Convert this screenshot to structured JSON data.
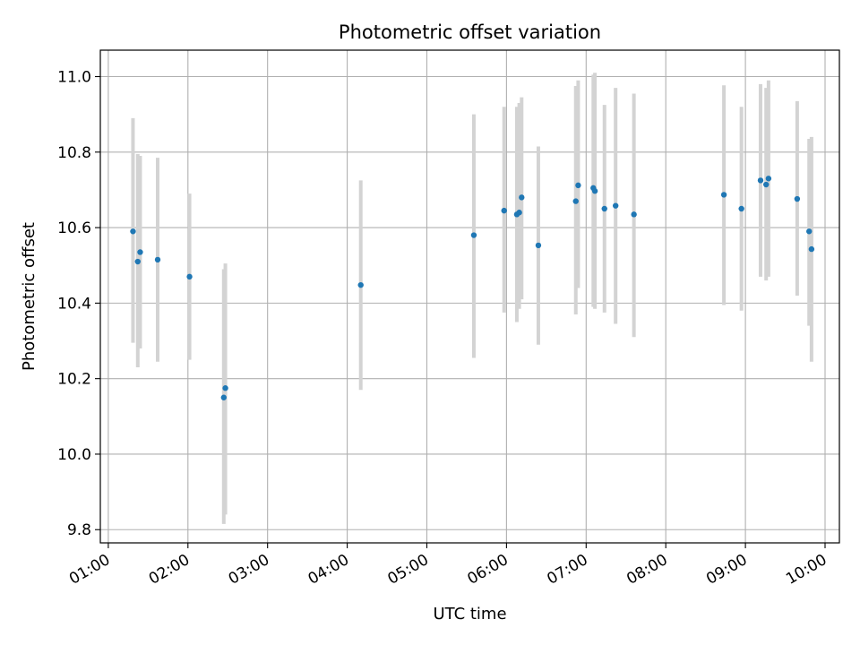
{
  "chart_data": {
    "type": "scatter",
    "title": "Photometric offset variation",
    "xlabel": "UTC time",
    "ylabel": "Photometric offset",
    "x_unit": "hours UTC",
    "xlim": [
      0.9,
      10.18
    ],
    "ylim": [
      9.765,
      11.07
    ],
    "x_ticks": [
      {
        "value": 1,
        "label": "01:00"
      },
      {
        "value": 2,
        "label": "02:00"
      },
      {
        "value": 3,
        "label": "03:00"
      },
      {
        "value": 4,
        "label": "04:00"
      },
      {
        "value": 5,
        "label": "05:00"
      },
      {
        "value": 6,
        "label": "06:00"
      },
      {
        "value": 7,
        "label": "07:00"
      },
      {
        "value": 8,
        "label": "08:00"
      },
      {
        "value": 9,
        "label": "09:00"
      },
      {
        "value": 10,
        "label": "10:00"
      }
    ],
    "y_ticks": [
      {
        "value": 9.8,
        "label": "9.8"
      },
      {
        "value": 10.0,
        "label": "10.0"
      },
      {
        "value": 10.2,
        "label": "10.2"
      },
      {
        "value": 10.4,
        "label": "10.4"
      },
      {
        "value": 10.6,
        "label": "10.6"
      },
      {
        "value": 10.8,
        "label": "10.8"
      },
      {
        "value": 11.0,
        "label": "11.0"
      }
    ],
    "grid": true,
    "marker_color": "#1f77b4",
    "errorbar_color": "#d3d3d3",
    "points": [
      {
        "x": 1.31,
        "y": 10.59,
        "ylo": 10.295,
        "yhi": 10.89
      },
      {
        "x": 1.37,
        "y": 10.51,
        "ylo": 10.23,
        "yhi": 10.795
      },
      {
        "x": 1.4,
        "y": 10.535,
        "ylo": 10.28,
        "yhi": 10.79
      },
      {
        "x": 1.62,
        "y": 10.515,
        "ylo": 10.245,
        "yhi": 10.785
      },
      {
        "x": 2.02,
        "y": 10.47,
        "ylo": 10.25,
        "yhi": 10.69
      },
      {
        "x": 2.45,
        "y": 10.15,
        "ylo": 9.815,
        "yhi": 10.49
      },
      {
        "x": 2.47,
        "y": 10.175,
        "ylo": 9.84,
        "yhi": 10.505
      },
      {
        "x": 4.17,
        "y": 10.448,
        "ylo": 10.17,
        "yhi": 10.725
      },
      {
        "x": 5.59,
        "y": 10.58,
        "ylo": 10.255,
        "yhi": 10.9
      },
      {
        "x": 5.97,
        "y": 10.645,
        "ylo": 10.375,
        "yhi": 10.92
      },
      {
        "x": 6.13,
        "y": 10.635,
        "ylo": 10.35,
        "yhi": 10.92
      },
      {
        "x": 6.16,
        "y": 10.64,
        "ylo": 10.385,
        "yhi": 10.93
      },
      {
        "x": 6.19,
        "y": 10.68,
        "ylo": 10.41,
        "yhi": 10.945
      },
      {
        "x": 6.4,
        "y": 10.553,
        "ylo": 10.29,
        "yhi": 10.815
      },
      {
        "x": 6.87,
        "y": 10.67,
        "ylo": 10.37,
        "yhi": 10.975
      },
      {
        "x": 6.9,
        "y": 10.712,
        "ylo": 10.44,
        "yhi": 10.99
      },
      {
        "x": 7.09,
        "y": 10.705,
        "ylo": 10.39,
        "yhi": 11.005
      },
      {
        "x": 7.11,
        "y": 10.697,
        "ylo": 10.385,
        "yhi": 11.01
      },
      {
        "x": 7.23,
        "y": 10.65,
        "ylo": 10.375,
        "yhi": 10.925
      },
      {
        "x": 7.37,
        "y": 10.658,
        "ylo": 10.345,
        "yhi": 10.97
      },
      {
        "x": 7.6,
        "y": 10.635,
        "ylo": 10.31,
        "yhi": 10.955
      },
      {
        "x": 8.73,
        "y": 10.687,
        "ylo": 10.395,
        "yhi": 10.977
      },
      {
        "x": 8.95,
        "y": 10.65,
        "ylo": 10.38,
        "yhi": 10.92
      },
      {
        "x": 9.19,
        "y": 10.725,
        "ylo": 10.47,
        "yhi": 10.98
      },
      {
        "x": 9.26,
        "y": 10.714,
        "ylo": 10.46,
        "yhi": 10.97
      },
      {
        "x": 9.29,
        "y": 10.73,
        "ylo": 10.47,
        "yhi": 10.99
      },
      {
        "x": 9.65,
        "y": 10.676,
        "ylo": 10.42,
        "yhi": 10.935
      },
      {
        "x": 9.8,
        "y": 10.59,
        "ylo": 10.34,
        "yhi": 10.835
      },
      {
        "x": 9.83,
        "y": 10.543,
        "ylo": 10.245,
        "yhi": 10.84
      }
    ]
  }
}
